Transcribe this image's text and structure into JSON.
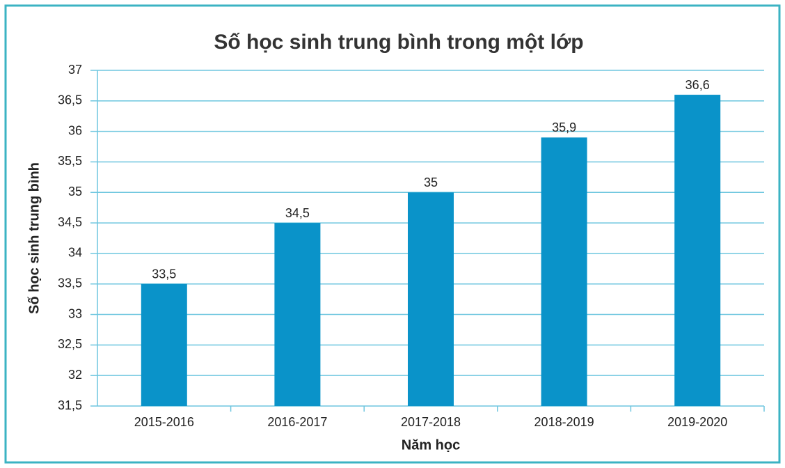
{
  "chart_data": {
    "type": "bar",
    "title": "Số học sinh trung bình trong một lớp",
    "x_label": "Năm học",
    "y_label": "Số học sinh trung bình",
    "categories": [
      "2015-2016",
      "2016-2017",
      "2017-2018",
      "2018-2019",
      "2019-2020"
    ],
    "values": [
      33.5,
      34.5,
      35,
      35.9,
      36.6
    ],
    "value_labels": [
      "33,5",
      "34,5",
      "35",
      "35,9",
      "36,6"
    ],
    "color": "#0a93c9",
    "ylim": [
      31.5,
      37
    ],
    "yticks": [
      {
        "value": 31.5,
        "label": "31,5"
      },
      32,
      {
        "value": 32.5,
        "label": "32,5"
      },
      33,
      {
        "value": 33.5,
        "label": "33,5"
      },
      34,
      {
        "value": 34.5,
        "label": "34,5"
      },
      35,
      {
        "value": 35.5,
        "label": "35,5"
      },
      36,
      {
        "value": 36.5,
        "label": "36,5"
      },
      37
    ],
    "grid": true
  }
}
